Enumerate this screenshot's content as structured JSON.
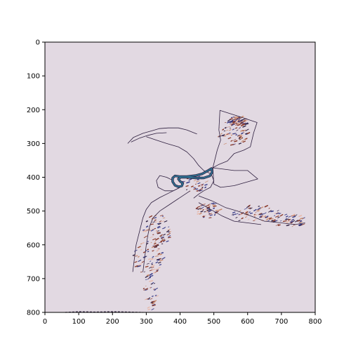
{
  "chart_data": {
    "type": "heatmap",
    "title": "",
    "xlabel": "",
    "ylabel": "",
    "xlim": [
      0,
      800
    ],
    "ylim": [
      800,
      0
    ],
    "x_ticks": [
      0,
      100,
      200,
      300,
      400,
      500,
      600,
      700,
      800
    ],
    "y_ticks": [
      0,
      100,
      200,
      300,
      400,
      500,
      600,
      700,
      800
    ],
    "x_tick_labels": [
      "0",
      "100",
      "200",
      "300",
      "400",
      "500",
      "600",
      "700",
      "800"
    ],
    "y_tick_labels": [
      "0",
      "100",
      "200",
      "300",
      "400",
      "500",
      "600",
      "700",
      "800"
    ],
    "grid": false,
    "legend": "none",
    "colormap": "twilight",
    "colors": {
      "background": "#e2d9e2",
      "dark_line": "#2d1e3e",
      "navy": "#3b3f8a",
      "brown": "#8a3a2a",
      "orange": "#c98a6a",
      "teal": "#2f6f8f",
      "pink_light": "#e8b8a8"
    },
    "regions": [
      {
        "name": "upper-arc",
        "polyline": [
          [
            245,
            300
          ],
          [
            262,
            282
          ],
          [
            290,
            270
          ],
          [
            318,
            262
          ],
          [
            338,
            256
          ],
          [
            365,
            254
          ],
          [
            395,
            254
          ],
          [
            420,
            260
          ],
          [
            440,
            268
          ],
          [
            450,
            272
          ]
        ]
      },
      {
        "name": "upper-arc-inner",
        "polyline": [
          [
            255,
            296
          ],
          [
            280,
            284
          ],
          [
            305,
            276
          ],
          [
            330,
            270
          ],
          [
            360,
            268
          ]
        ]
      },
      {
        "name": "upper-right-panel",
        "polygon": [
          [
            518,
            202
          ],
          [
            568,
            218
          ],
          [
            628,
            238
          ],
          [
            618,
            268
          ],
          [
            608,
            310
          ],
          [
            588,
            320
          ],
          [
            560,
            330
          ],
          [
            540,
            352
          ],
          [
            515,
            362
          ],
          [
            497,
            372
          ],
          [
            510,
            320
          ],
          [
            520,
            290
          ],
          [
            515,
            260
          ]
        ]
      },
      {
        "name": "right-block",
        "polygon": [
          [
            497,
            372
          ],
          [
            560,
            380
          ],
          [
            600,
            380
          ],
          [
            630,
            405
          ],
          [
            560,
            425
          ],
          [
            520,
            430
          ],
          [
            500,
            420
          ]
        ]
      },
      {
        "name": "central-hook",
        "polyline": [
          [
            300,
            280
          ],
          [
            330,
            290
          ],
          [
            360,
            300
          ],
          [
            395,
            310
          ],
          [
            420,
            325
          ],
          [
            440,
            345
          ],
          [
            455,
            365
          ],
          [
            470,
            380
          ],
          [
            492,
            390
          ],
          [
            500,
            410
          ],
          [
            490,
            430
          ],
          [
            470,
            440
          ],
          [
            455,
            450
          ],
          [
            440,
            462
          ]
        ]
      },
      {
        "name": "right-lobe",
        "polyline": [
          [
            455,
            455
          ],
          [
            495,
            470
          ],
          [
            535,
            490
          ],
          [
            570,
            500
          ],
          [
            610,
            515
          ],
          [
            650,
            530
          ],
          [
            700,
            535
          ],
          [
            740,
            540
          ],
          [
            770,
            535
          ]
        ]
      },
      {
        "name": "right-lobe-lower",
        "polyline": [
          [
            455,
            475
          ],
          [
            490,
            495
          ],
          [
            525,
            515
          ],
          [
            560,
            530
          ],
          [
            600,
            535
          ],
          [
            640,
            540
          ]
        ]
      },
      {
        "name": "left-stem",
        "polyline": [
          [
            430,
            440
          ],
          [
            400,
            460
          ],
          [
            370,
            480
          ],
          [
            340,
            500
          ],
          [
            320,
            520
          ],
          [
            310,
            545
          ],
          [
            305,
            570
          ],
          [
            300,
            600
          ],
          [
            295,
            640
          ],
          [
            290,
            680
          ]
        ]
      },
      {
        "name": "left-stem-outer",
        "polyline": [
          [
            400,
            430
          ],
          [
            370,
            445
          ],
          [
            340,
            460
          ],
          [
            315,
            475
          ],
          [
            300,
            495
          ],
          [
            290,
            520
          ],
          [
            280,
            560
          ],
          [
            270,
            600
          ],
          [
            265,
            640
          ],
          [
            260,
            680
          ]
        ]
      },
      {
        "name": "inner-loops",
        "polyline": [
          [
            380,
            410
          ],
          [
            360,
            400
          ],
          [
            340,
            395
          ],
          [
            330,
            410
          ],
          [
            335,
            430
          ],
          [
            355,
            440
          ],
          [
            380,
            440
          ],
          [
            400,
            430
          ]
        ]
      }
    ],
    "texture_patches": [
      {
        "name": "patch-upper-right",
        "center": [
          555,
          270
        ],
        "radius": [
          45,
          40
        ],
        "density": 0.55
      },
      {
        "name": "patch-right-top",
        "center": [
          570,
          235
        ],
        "radius": [
          30,
          15
        ],
        "density": 0.65
      },
      {
        "name": "patch-right-lobe",
        "center": [
          620,
          510
        ],
        "radius": [
          75,
          25
        ],
        "density": 0.5
      },
      {
        "name": "patch-right-tail",
        "center": [
          720,
          530
        ],
        "radius": [
          50,
          20
        ],
        "density": 0.35
      },
      {
        "name": "patch-left-stem",
        "center": [
          330,
          560
        ],
        "radius": [
          40,
          50
        ],
        "density": 0.5
      },
      {
        "name": "patch-left-stem-lower",
        "center": [
          305,
          640
        ],
        "radius": [
          45,
          50
        ],
        "density": 0.55
      },
      {
        "name": "patch-bottom",
        "center": [
          310,
          740
        ],
        "radius": [
          20,
          60
        ],
        "density": 0.3
      },
      {
        "name": "patch-center",
        "center": [
          440,
          420
        ],
        "radius": [
          40,
          25
        ],
        "density": 0.3
      },
      {
        "name": "patch-mid",
        "center": [
          480,
          500
        ],
        "radius": [
          35,
          25
        ],
        "density": 0.35
      }
    ],
    "highlight_loop": {
      "name": "teal-loop",
      "polyline": [
        [
          493,
          374
        ],
        [
          480,
          382
        ],
        [
          465,
          390
        ],
        [
          445,
          395
        ],
        [
          420,
          398
        ],
        [
          400,
          398
        ],
        [
          385,
          396
        ],
        [
          378,
          402
        ],
        [
          378,
          413
        ],
        [
          385,
          424
        ],
        [
          395,
          428
        ],
        [
          405,
          426
        ],
        [
          408,
          418
        ],
        [
          400,
          412
        ],
        [
          395,
          405
        ],
        [
          402,
          400
        ],
        [
          420,
          400
        ],
        [
          445,
          402
        ],
        [
          470,
          402
        ],
        [
          488,
          396
        ],
        [
          495,
          385
        ],
        [
          493,
          374
        ]
      ]
    },
    "bottom_line": {
      "name": "bottom-trace",
      "polyline": [
        [
          60,
          800
        ],
        [
          100,
          798
        ],
        [
          150,
          799
        ],
        [
          200,
          798
        ],
        [
          250,
          799
        ],
        [
          290,
          800
        ]
      ]
    }
  }
}
